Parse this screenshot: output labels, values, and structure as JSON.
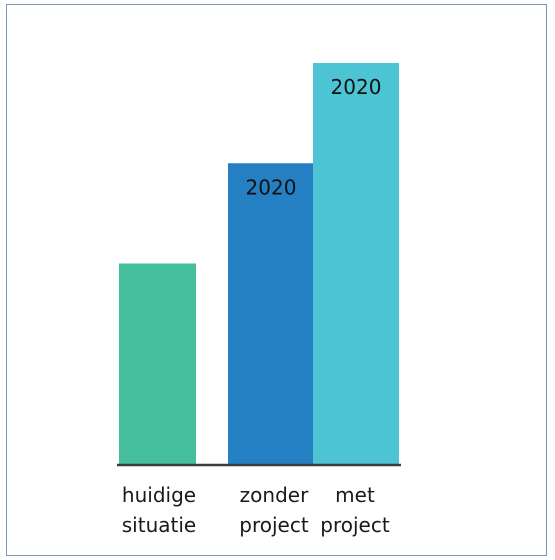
{
  "chart_data": {
    "type": "bar",
    "title": "",
    "xlabel": "",
    "ylabel": "",
    "categories": [
      [
        "huidige",
        "situatie"
      ],
      [
        "zonder",
        "project"
      ],
      [
        "met",
        "project"
      ]
    ],
    "values": [
      100,
      150,
      200
    ],
    "bar_labels": [
      "",
      "2020",
      "2020"
    ],
    "colors": [
      "#45bf9b",
      "#2580c3",
      "#4cc4d3"
    ],
    "axis_color": "#3c3c3c",
    "ylim": [
      0,
      200
    ],
    "grid": false,
    "legend": "none"
  }
}
